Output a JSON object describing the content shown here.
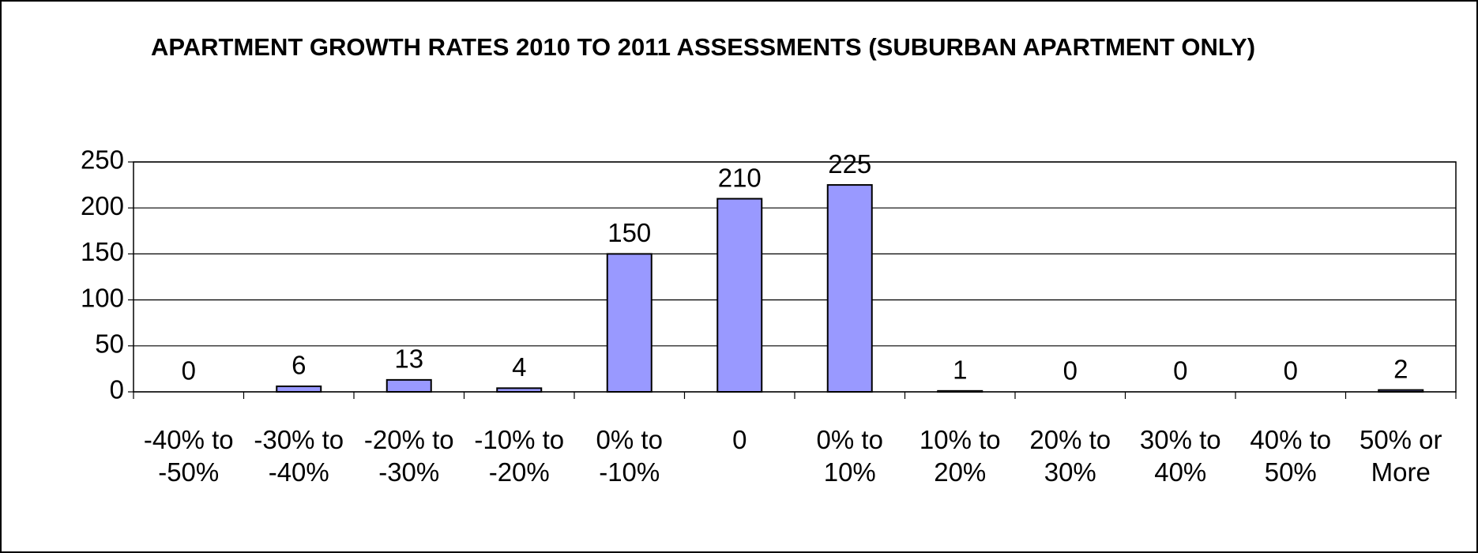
{
  "chart_data": {
    "type": "bar",
    "title": "APARTMENT GROWTH RATES 2010 TO 2011 ASSESSMENTS (SUBURBAN APARTMENT ONLY)",
    "categories": [
      "-40% to -50%",
      "-30% to -40%",
      "-20% to -30%",
      "-10% to -20%",
      "0%  to -10%",
      "0",
      "0% to 10%",
      "10% to 20%",
      "20% to 30%",
      "30% to 40%",
      "40% to 50%",
      "50% or More"
    ],
    "values": [
      0,
      6,
      13,
      4,
      150,
      210,
      225,
      1,
      0,
      0,
      0,
      2
    ],
    "color": "#9999ff",
    "ylim": [
      0,
      250
    ],
    "yticks": [
      0,
      50,
      100,
      150,
      200,
      250
    ],
    "grid": true
  }
}
